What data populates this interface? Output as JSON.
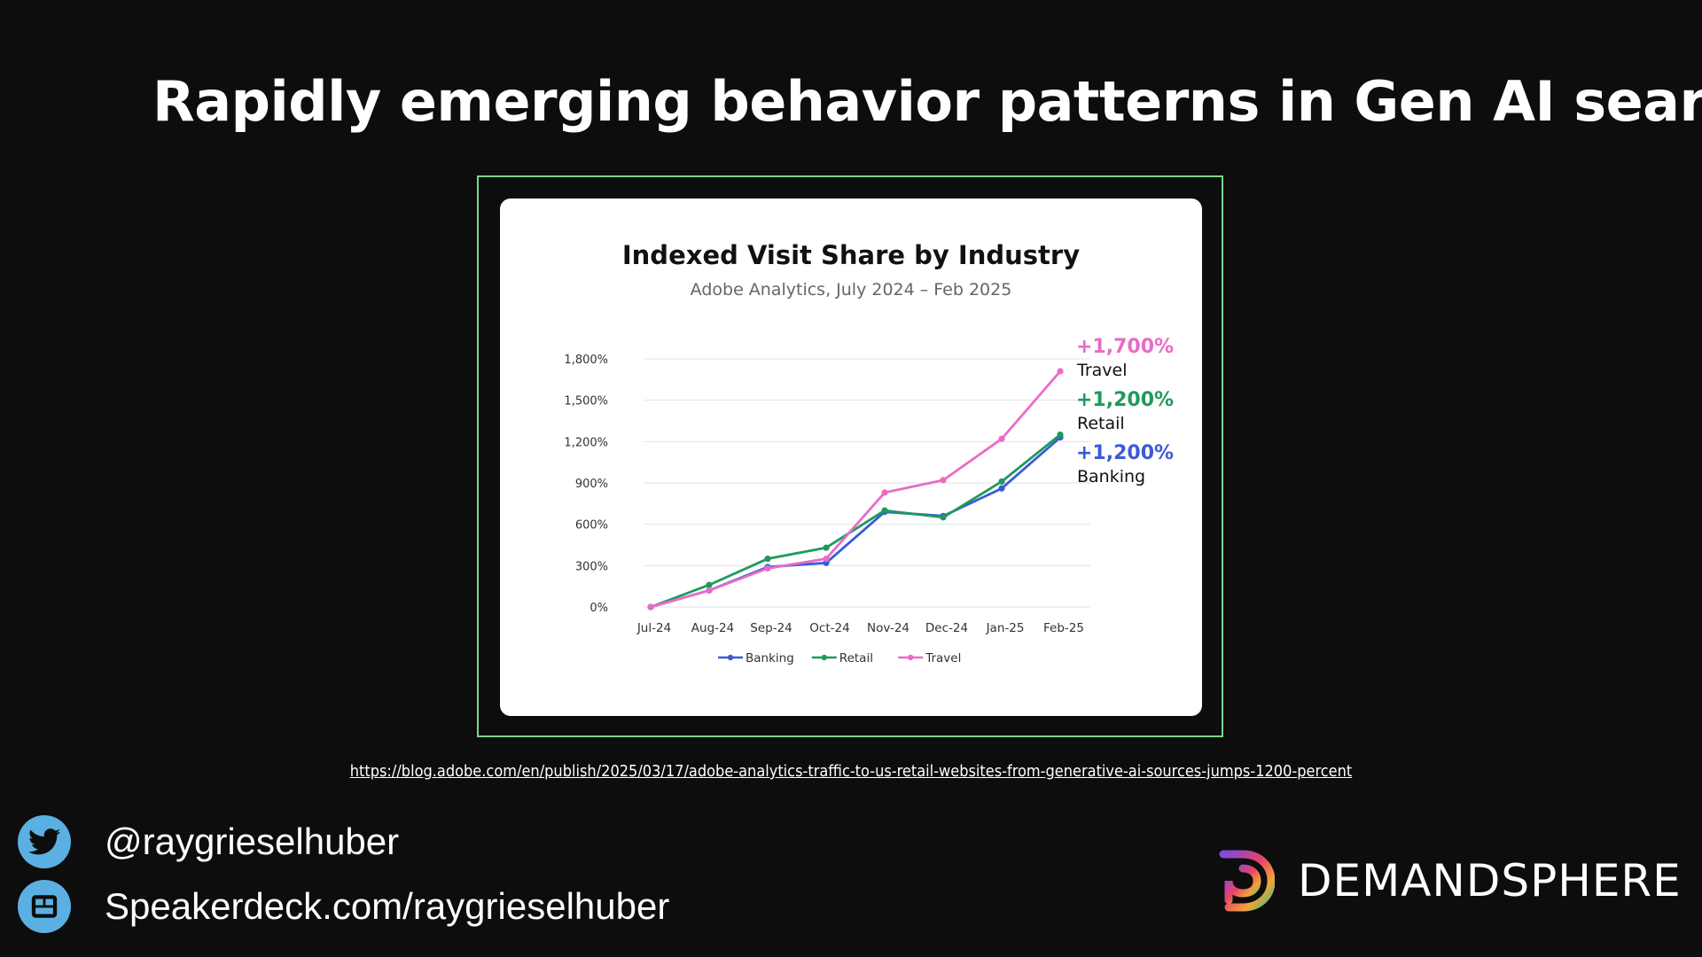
{
  "slide": {
    "title": "Rapidly emerging behavior patterns in Gen AI search",
    "source_url": "https://blog.adobe.com/en/publish/2025/03/17/adobe-analytics-traffic-to-us-retail-websites-from-generative-ai-sources-jumps-1200-percent"
  },
  "footer": {
    "twitter_handle": "@raygrieselhuber",
    "speakerdeck": "Speakerdeck.com/raygrieselhuber",
    "brand_name": "DEMANDSPHERE"
  },
  "icons": {
    "twitter": "twitter-bird-icon",
    "speakerdeck": "speakerdeck-icon",
    "brand_logo": "demandsphere-logo-icon"
  },
  "colors": {
    "background": "#0d0d0d",
    "frame": "#79d98b",
    "banking": "#3b5bd6",
    "retail": "#1e9a5c",
    "travel": "#e86cc6",
    "social_icon": "#5ab0e3"
  },
  "chart_data": {
    "type": "line",
    "title": "Indexed Visit Share by Industry",
    "subtitle": "Adobe Analytics, July 2024 – Feb 2025",
    "categories": [
      "Jul-24",
      "Aug-24",
      "Sep-24",
      "Oct-24",
      "Nov-24",
      "Dec-24",
      "Jan-25",
      "Feb-25"
    ],
    "yticks": [
      "0%",
      "300%",
      "600%",
      "900%",
      "1,200%",
      "1,500%",
      "1,800%"
    ],
    "ylim": [
      0,
      1800
    ],
    "grid": true,
    "legend": "bottom",
    "series": [
      {
        "name": "Banking",
        "color": "#3b5bd6",
        "values": [
          0,
          120,
          290,
          320,
          690,
          660,
          860,
          1230
        ]
      },
      {
        "name": "Retail",
        "color": "#1e9a5c",
        "values": [
          0,
          160,
          350,
          430,
          700,
          650,
          910,
          1250
        ]
      },
      {
        "name": "Travel",
        "color": "#e86cc6",
        "values": [
          0,
          120,
          280,
          350,
          830,
          920,
          1220,
          1710
        ]
      }
    ],
    "annotations": [
      {
        "value": "+1,700%",
        "label": "Travel",
        "color": "#e86cc6"
      },
      {
        "value": "+1,200%",
        "label": "Retail",
        "color": "#1e9a5c"
      },
      {
        "value": "+1,200%",
        "label": "Banking",
        "color": "#3b5bd6"
      }
    ]
  }
}
